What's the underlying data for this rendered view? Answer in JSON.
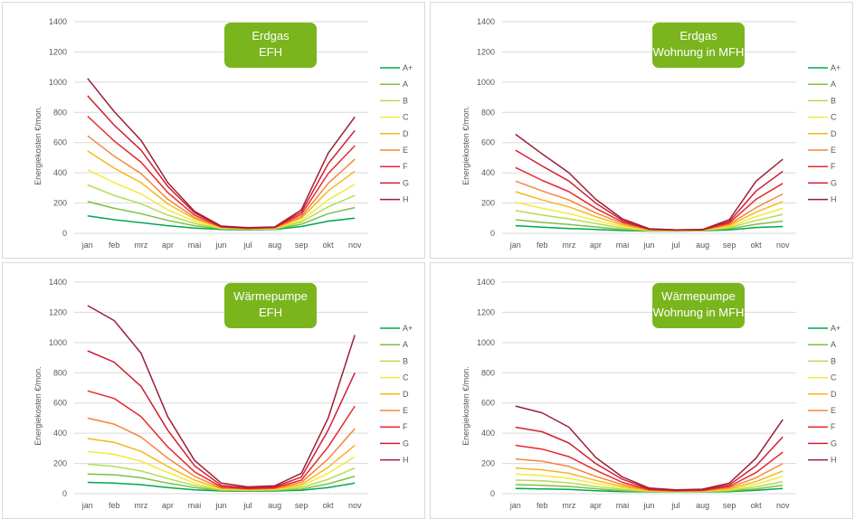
{
  "chart_data": [
    {
      "type": "line",
      "title_lines": [
        "Erdgas",
        "EFH"
      ],
      "ylabel": "Energiekosten €/mon.",
      "ylim": [
        0,
        1400
      ],
      "yticks": [
        0,
        200,
        400,
        600,
        800,
        1000,
        1200,
        1400
      ],
      "categories": [
        "jan",
        "feb",
        "mrz",
        "apr",
        "mai",
        "jun",
        "jul",
        "aug",
        "sep",
        "okt",
        "nov"
      ],
      "series": [
        {
          "name": "A+",
          "color": "#00a651",
          "values": [
            115,
            90,
            70,
            50,
            35,
            25,
            22,
            25,
            45,
            80,
            100
          ]
        },
        {
          "name": "A",
          "color": "#7cc142",
          "values": [
            210,
            165,
            130,
            85,
            50,
            30,
            25,
            28,
            60,
            130,
            170
          ]
        },
        {
          "name": "B",
          "color": "#b5dc55",
          "values": [
            320,
            250,
            195,
            120,
            65,
            32,
            27,
            30,
            75,
            175,
            250
          ]
        },
        {
          "name": "C",
          "color": "#f3ea3a",
          "values": [
            420,
            335,
            260,
            155,
            80,
            35,
            28,
            32,
            85,
            220,
            325
          ]
        },
        {
          "name": "D",
          "color": "#f6b71c",
          "values": [
            545,
            430,
            335,
            195,
            95,
            38,
            30,
            34,
            100,
            280,
            410
          ]
        },
        {
          "name": "E",
          "color": "#f4863c",
          "values": [
            645,
            510,
            395,
            225,
            105,
            40,
            32,
            36,
            110,
            330,
            490
          ]
        },
        {
          "name": "F",
          "color": "#e8282c",
          "values": [
            775,
            610,
            470,
            270,
            120,
            42,
            33,
            38,
            125,
            395,
            580
          ]
        },
        {
          "name": "G",
          "color": "#d01f33",
          "values": [
            910,
            715,
            550,
            310,
            135,
            45,
            35,
            40,
            140,
            460,
            680
          ]
        },
        {
          "name": "H",
          "color": "#9d1e3a",
          "values": [
            1025,
            805,
            615,
            335,
            145,
            48,
            37,
            42,
            155,
            530,
            770
          ]
        }
      ]
    },
    {
      "type": "line",
      "title_lines": [
        "Erdgas",
        "Wohnung in MFH"
      ],
      "ylabel": "Energiekosten €/mon.",
      "ylim": [
        0,
        1400
      ],
      "yticks": [
        0,
        200,
        400,
        600,
        800,
        1000,
        1200,
        1400
      ],
      "categories": [
        "jan",
        "feb",
        "mrz",
        "apr",
        "mai",
        "jun",
        "jul",
        "aug",
        "sep",
        "okt",
        "nov"
      ],
      "series": [
        {
          "name": "A+",
          "color": "#00a651",
          "values": [
            50,
            40,
            32,
            25,
            18,
            15,
            15,
            16,
            22,
            38,
            45
          ]
        },
        {
          "name": "A",
          "color": "#7cc142",
          "values": [
            90,
            72,
            58,
            42,
            26,
            17,
            16,
            18,
            30,
            60,
            80
          ]
        },
        {
          "name": "B",
          "color": "#b5dc55",
          "values": [
            150,
            120,
            95,
            65,
            35,
            19,
            17,
            19,
            38,
            85,
            125
          ]
        },
        {
          "name": "C",
          "color": "#f3ea3a",
          "values": [
            205,
            165,
            130,
            85,
            45,
            20,
            18,
            20,
            45,
            110,
            165
          ]
        },
        {
          "name": "D",
          "color": "#f6b71c",
          "values": [
            275,
            220,
            175,
            110,
            55,
            22,
            19,
            21,
            52,
            140,
            210
          ]
        },
        {
          "name": "E",
          "color": "#f4863c",
          "values": [
            345,
            280,
            220,
            135,
            65,
            24,
            20,
            22,
            60,
            170,
            260
          ]
        },
        {
          "name": "F",
          "color": "#e8282c",
          "values": [
            435,
            350,
            275,
            165,
            75,
            26,
            21,
            23,
            68,
            225,
            330
          ]
        },
        {
          "name": "G",
          "color": "#d01f33",
          "values": [
            550,
            445,
            345,
            200,
            85,
            28,
            22,
            24,
            78,
            280,
            410
          ]
        },
        {
          "name": "H",
          "color": "#9d1e3a",
          "values": [
            655,
            525,
            400,
            225,
            95,
            30,
            23,
            25,
            90,
            345,
            490
          ]
        }
      ]
    },
    {
      "type": "line",
      "title_lines": [
        "Wärmepumpe",
        "EFH"
      ],
      "ylabel": "Energiekosten €/mon.",
      "ylim": [
        0,
        1400
      ],
      "yticks": [
        0,
        200,
        400,
        600,
        800,
        1000,
        1200,
        1400
      ],
      "categories": [
        "jan",
        "feb",
        "mrz",
        "apr",
        "mai",
        "jun",
        "jul",
        "aug",
        "sep",
        "okt",
        "nov"
      ],
      "series": [
        {
          "name": "A+",
          "color": "#00a651",
          "values": [
            75,
            70,
            60,
            40,
            25,
            18,
            16,
            18,
            22,
            40,
            70
          ]
        },
        {
          "name": "A",
          "color": "#7cc142",
          "values": [
            130,
            125,
            105,
            70,
            40,
            22,
            20,
            22,
            30,
            65,
            115
          ]
        },
        {
          "name": "B",
          "color": "#b5dc55",
          "values": [
            195,
            180,
            150,
            100,
            55,
            26,
            22,
            25,
            40,
            95,
            170
          ]
        },
        {
          "name": "C",
          "color": "#f3ea3a",
          "values": [
            280,
            260,
            215,
            140,
            70,
            30,
            25,
            28,
            50,
            135,
            245
          ]
        },
        {
          "name": "D",
          "color": "#f6b71c",
          "values": [
            365,
            340,
            280,
            180,
            90,
            34,
            28,
            31,
            60,
            175,
            320
          ]
        },
        {
          "name": "E",
          "color": "#f4863c",
          "values": [
            500,
            460,
            375,
            235,
            115,
            38,
            30,
            34,
            75,
            230,
            430
          ]
        },
        {
          "name": "F",
          "color": "#e8282c",
          "values": [
            680,
            630,
            510,
            310,
            145,
            45,
            33,
            38,
            90,
            310,
            580
          ]
        },
        {
          "name": "G",
          "color": "#d01f33",
          "values": [
            945,
            870,
            710,
            420,
            185,
            55,
            38,
            45,
            110,
            420,
            800
          ]
        },
        {
          "name": "H",
          "color": "#9d1e3a",
          "values": [
            1245,
            1145,
            930,
            510,
            220,
            70,
            45,
            52,
            135,
            500,
            1050
          ]
        }
      ]
    },
    {
      "type": "line",
      "title_lines": [
        "Wärmepumpe",
        "Wohnung in MFH"
      ],
      "ylabel": "Energiekosten €/mon.",
      "ylim": [
        0,
        1400
      ],
      "yticks": [
        0,
        200,
        400,
        600,
        800,
        1000,
        1200,
        1400
      ],
      "categories": [
        "jan",
        "feb",
        "mrz",
        "apr",
        "mai",
        "jun",
        "jul",
        "aug",
        "sep",
        "okt",
        "nov"
      ],
      "series": [
        {
          "name": "A+",
          "color": "#00a651",
          "values": [
            35,
            32,
            28,
            20,
            14,
            12,
            12,
            12,
            14,
            22,
            35
          ]
        },
        {
          "name": "A",
          "color": "#7cc142",
          "values": [
            60,
            55,
            48,
            33,
            20,
            14,
            13,
            14,
            18,
            32,
            55
          ]
        },
        {
          "name": "B",
          "color": "#b5dc55",
          "values": [
            90,
            85,
            72,
            48,
            28,
            16,
            14,
            15,
            22,
            45,
            80
          ]
        },
        {
          "name": "C",
          "color": "#f3ea3a",
          "values": [
            130,
            120,
            102,
            68,
            38,
            18,
            15,
            17,
            27,
            62,
            115
          ]
        },
        {
          "name": "D",
          "color": "#f6b71c",
          "values": [
            170,
            158,
            135,
            88,
            48,
            20,
            16,
            18,
            32,
            80,
            150
          ]
        },
        {
          "name": "E",
          "color": "#f4863c",
          "values": [
            230,
            215,
            180,
            115,
            60,
            23,
            18,
            20,
            40,
            105,
            200
          ]
        },
        {
          "name": "F",
          "color": "#e8282c",
          "values": [
            320,
            295,
            245,
            155,
            75,
            27,
            20,
            23,
            48,
            140,
            275
          ]
        },
        {
          "name": "G",
          "color": "#d01f33",
          "values": [
            440,
            410,
            335,
            200,
            95,
            32,
            22,
            26,
            58,
            185,
            375
          ]
        },
        {
          "name": "H",
          "color": "#9d1e3a",
          "values": [
            580,
            535,
            440,
            240,
            110,
            37,
            25,
            30,
            70,
            235,
            490
          ]
        }
      ]
    }
  ]
}
